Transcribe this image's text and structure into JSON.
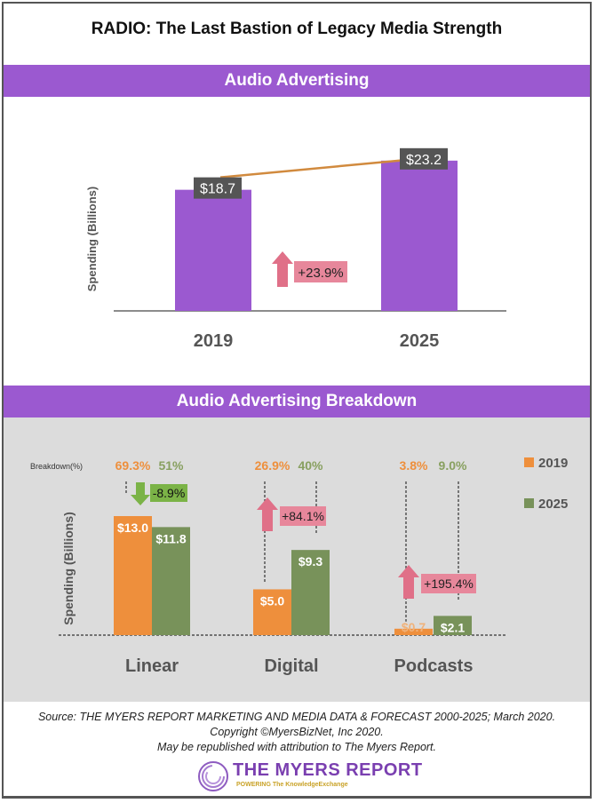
{
  "title": "RADIO: The Last Bastion of Legacy Media Strength",
  "colors": {
    "purple": "#9b59d0",
    "orange": "#ee8f3c",
    "green": "#78925a",
    "label_bg": "#555555",
    "change_pink": "#e7879b",
    "arrow_pink": "#e07088",
    "change_green": "#7bb347",
    "line_orange": "#d18a3e"
  },
  "chart_data": [
    {
      "type": "bar",
      "title": "Audio Advertising",
      "ylabel": "Spending (Billions)",
      "xlabel": "",
      "categories": [
        "2019",
        "2025"
      ],
      "values": [
        18.7,
        23.2
      ],
      "data_labels": [
        "$18.7",
        "$23.2"
      ],
      "ylim": [
        0,
        24
      ],
      "grid": false,
      "annotations": [
        {
          "text": "+23.9%",
          "type": "growth",
          "direction": "up"
        }
      ],
      "trend_line": true
    },
    {
      "type": "bar",
      "title": "Audio Advertising Breakdown",
      "ylabel": "Spending (Billions)",
      "xlabel": "",
      "breakdown_label": "Breakdown(%)",
      "categories": [
        "Linear",
        "Digital",
        "Podcasts"
      ],
      "series": [
        {
          "name": "2019",
          "values": [
            13.0,
            5.0,
            0.7
          ],
          "data_labels": [
            "$13.0",
            "$5.0",
            "$0.7"
          ],
          "shares": [
            "69.3%",
            "26.9%",
            "3.8%"
          ]
        },
        {
          "name": "2025",
          "values": [
            11.8,
            9.3,
            2.1
          ],
          "data_labels": [
            "$11.8",
            "$9.3",
            "$2.1"
          ],
          "shares": [
            "51%",
            "40%",
            "9.0%"
          ]
        }
      ],
      "changes": [
        {
          "text": "-8.9%",
          "direction": "down"
        },
        {
          "text": "+84.1%",
          "direction": "up"
        },
        {
          "text": "+195.4%",
          "direction": "up"
        }
      ],
      "ylim": [
        0,
        14
      ],
      "grid": false,
      "legend": {
        "position": "right",
        "entries": [
          "2019",
          "2025"
        ]
      }
    }
  ],
  "footer": {
    "source": "Source: THE MYERS REPORT MARKETING AND MEDIA DATA & FORECAST 2000-2025; March 2020.",
    "copyright": "Copyright ©MyersBizNet, Inc 2020.",
    "attribution": "May be republished with attribution to The Myers Report."
  },
  "logo": {
    "name": "THE MYERS REPORT",
    "tagline": "POWERING The KnowledgeExchange"
  }
}
